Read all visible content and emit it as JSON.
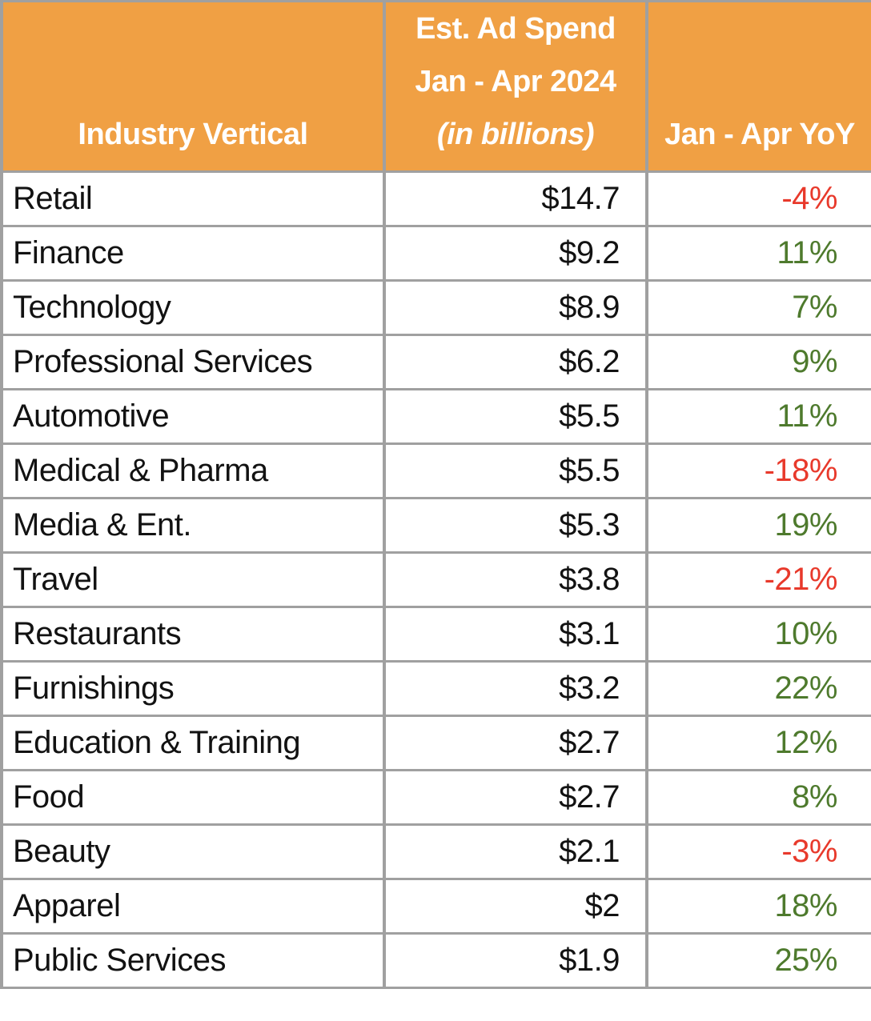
{
  "table": {
    "columns": [
      {
        "label": "Industry Vertical"
      },
      {
        "line1": "Est. Ad Spend",
        "line2": "Jan - Apr 2024",
        "line3": "(in billions)"
      },
      {
        "label": "Jan - Apr YoY"
      }
    ],
    "rows": [
      {
        "vertical": "Retail",
        "spend": "$14.7",
        "yoy": "-4%"
      },
      {
        "vertical": "Finance",
        "spend": "$9.2",
        "yoy": "11%"
      },
      {
        "vertical": "Technology",
        "spend": "$8.9",
        "yoy": "7%"
      },
      {
        "vertical": "Professional Services",
        "spend": "$6.2",
        "yoy": "9%"
      },
      {
        "vertical": "Automotive",
        "spend": "$5.5",
        "yoy": "11%"
      },
      {
        "vertical": "Medical & Pharma",
        "spend": "$5.5",
        "yoy": "-18%"
      },
      {
        "vertical": "Media & Ent.",
        "spend": "$5.3",
        "yoy": "19%"
      },
      {
        "vertical": "Travel",
        "spend": "$3.8",
        "yoy": "-21%"
      },
      {
        "vertical": "Restaurants",
        "spend": "$3.1",
        "yoy": "10%"
      },
      {
        "vertical": "Furnishings",
        "spend": "$3.2",
        "yoy": "22%"
      },
      {
        "vertical": "Education & Training",
        "spend": "$2.7",
        "yoy": "12%"
      },
      {
        "vertical": "Food",
        "spend": "$2.7",
        "yoy": "8%"
      },
      {
        "vertical": "Beauty",
        "spend": "$2.1",
        "yoy": "-3%"
      },
      {
        "vertical": "Apparel",
        "spend": "$2",
        "yoy": "18%"
      },
      {
        "vertical": "Public Services",
        "spend": "$1.9",
        "yoy": "25%"
      }
    ]
  },
  "colors": {
    "header_bg": "#F0A044",
    "header_text": "#FFFFFF",
    "border": "#A0A0A0",
    "positive": "#4E7A2D",
    "negative": "#E8392B",
    "body_text": "#121212"
  },
  "chart_data": {
    "type": "table",
    "title": "Est. Ad Spend Jan - Apr 2024 by Industry Vertical",
    "columns": [
      "Industry Vertical",
      "Est. Ad Spend Jan - Apr 2024 (in billions)",
      "Jan - Apr YoY"
    ],
    "rows": [
      [
        "Retail",
        14.7,
        "-4%"
      ],
      [
        "Finance",
        9.2,
        "11%"
      ],
      [
        "Technology",
        8.9,
        "7%"
      ],
      [
        "Professional Services",
        6.2,
        "9%"
      ],
      [
        "Automotive",
        5.5,
        "11%"
      ],
      [
        "Medical & Pharma",
        5.5,
        "-18%"
      ],
      [
        "Media & Ent.",
        5.3,
        "19%"
      ],
      [
        "Travel",
        3.8,
        "-21%"
      ],
      [
        "Restaurants",
        3.1,
        "10%"
      ],
      [
        "Furnishings",
        3.2,
        "22%"
      ],
      [
        "Education & Training",
        2.7,
        "12%"
      ],
      [
        "Food",
        2.7,
        "8%"
      ],
      [
        "Beauty",
        2.1,
        "-3%"
      ],
      [
        "Apparel",
        2,
        "18%"
      ],
      [
        "Public Services",
        1.9,
        "25%"
      ]
    ]
  }
}
